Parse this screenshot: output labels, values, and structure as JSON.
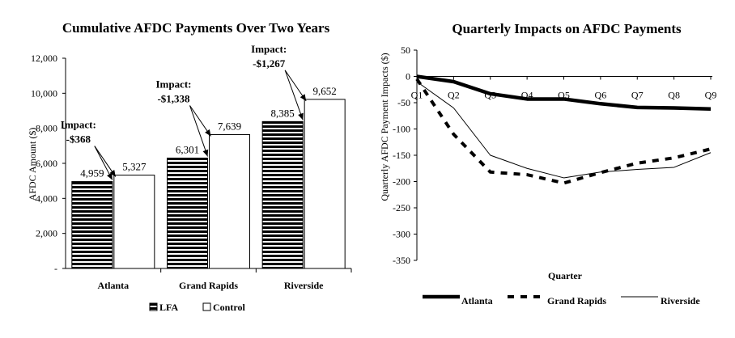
{
  "chart_data": [
    {
      "type": "bar",
      "title": "Cumulative AFDC Payments Over Two Years",
      "ylabel": "AFDC Amount ($)",
      "xlabel": "",
      "ylim": [
        0,
        12000
      ],
      "yticks": [
        0,
        2000,
        4000,
        6000,
        8000,
        10000,
        12000
      ],
      "ytick_labels": [
        "-",
        "2,000",
        "4,000",
        "6,000",
        "8,000",
        "10,000",
        "12,000"
      ],
      "categories": [
        "Atlanta",
        "Grand Rapids",
        "Riverside"
      ],
      "series": [
        {
          "name": "LFA",
          "values": [
            4959,
            6301,
            8385
          ],
          "labels": [
            "4,959",
            "6,301",
            "8,385"
          ]
        },
        {
          "name": "Control",
          "values": [
            5327,
            7639,
            9652
          ],
          "labels": [
            "5,327",
            "7,639",
            "9,652"
          ]
        }
      ],
      "annotations": [
        {
          "title": "Impact:",
          "value": "-$368"
        },
        {
          "title": "Impact:",
          "value": "-$1,338"
        },
        {
          "title": "Impact:",
          "value": "-$1,267"
        }
      ],
      "legend": [
        "LFA",
        "Control"
      ]
    },
    {
      "type": "line",
      "title": "Quarterly Impacts on AFDC Payments",
      "xlabel": "Quarter",
      "ylabel": "Quarterly AFDC Payment Impacts ($)",
      "ylim": [
        -350,
        50
      ],
      "yticks": [
        50,
        0,
        -50,
        -100,
        -150,
        -200,
        -250,
        -300,
        -350
      ],
      "ytick_labels": [
        "50",
        "0",
        "-50",
        "-100",
        "-150",
        "-200",
        "-250",
        "-300",
        "-350"
      ],
      "categories": [
        "Q1",
        "Q2",
        "Q3",
        "Q4",
        "Q5",
        "Q6",
        "Q7",
        "Q8",
        "Q9"
      ],
      "series": [
        {
          "name": "Atlanta",
          "values": [
            0,
            -10,
            -33,
            -43,
            -43,
            -52,
            -59,
            -60,
            -62
          ]
        },
        {
          "name": "Grand Rapids",
          "values": [
            -5,
            -110,
            -182,
            -187,
            -203,
            -183,
            -165,
            -155,
            -138
          ]
        },
        {
          "name": "Riverside",
          "values": [
            -10,
            -60,
            -150,
            -175,
            -193,
            -182,
            -177,
            -173,
            -145
          ]
        }
      ],
      "legend": [
        "Atlanta",
        "Grand Rapids",
        "Riverside"
      ]
    }
  ]
}
